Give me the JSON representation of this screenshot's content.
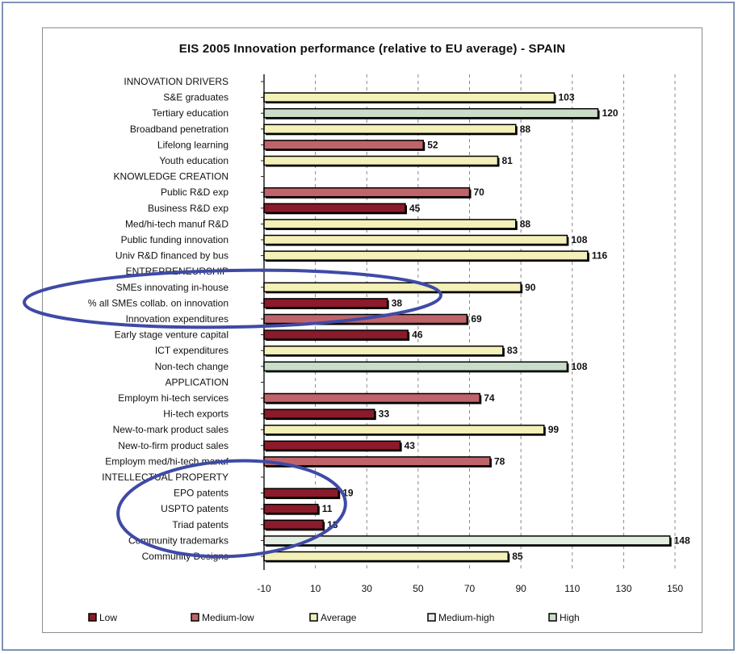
{
  "chart_data": {
    "type": "bar",
    "orientation": "horizontal",
    "title": "EIS 2005 Innovation performance (relative to EU average) - SPAIN",
    "xlabel": "",
    "ylabel": "",
    "xlim": [
      -10,
      150
    ],
    "xticks": [
      -10,
      10,
      30,
      50,
      70,
      90,
      110,
      130,
      150
    ],
    "grid": "vertical dashed",
    "legend_position": "bottom",
    "legend": [
      {
        "key": "low",
        "label": "Low",
        "color": "#8b1a2b"
      },
      {
        "key": "medium-low",
        "label": "Medium-low",
        "color": "#c0646b"
      },
      {
        "key": "average",
        "label": "Average",
        "color": "#f3f0b8"
      },
      {
        "key": "medium-high",
        "label": "Medium-high",
        "color": "#e4eee0"
      },
      {
        "key": "high",
        "label": "High",
        "color": "#c9ddc9"
      }
    ],
    "categories": [
      {
        "label": "INNOVATION DRIVERS",
        "header": true
      },
      {
        "label": "S&E graduates",
        "value": 103,
        "level": "average"
      },
      {
        "label": "Tertiary education",
        "value": 120,
        "level": "high"
      },
      {
        "label": "Broadband penetration",
        "value": 88,
        "level": "average"
      },
      {
        "label": "Lifelong learning",
        "value": 52,
        "level": "medium-low"
      },
      {
        "label": "Youth education",
        "value": 81,
        "level": "average"
      },
      {
        "label": "KNOWLEDGE CREATION",
        "header": true
      },
      {
        "label": "Public R&D exp",
        "value": 70,
        "level": "medium-low"
      },
      {
        "label": "Business R&D exp",
        "value": 45,
        "level": "low"
      },
      {
        "label": "Med/hi-tech manuf R&D",
        "value": 88,
        "level": "average"
      },
      {
        "label": "Public funding innovation",
        "value": 108,
        "level": "average"
      },
      {
        "label": "Univ R&D financed by bus",
        "value": 116,
        "level": "average"
      },
      {
        "label": "ENTREPRENEURSHIP",
        "header": true
      },
      {
        "label": "SMEs innovating in-house",
        "value": 90,
        "level": "average"
      },
      {
        "label": "% all SMEs collab. on innovation",
        "value": 38,
        "level": "low"
      },
      {
        "label": "Innovation expenditures",
        "value": 69,
        "level": "medium-low"
      },
      {
        "label": "Early stage venture capital",
        "value": 46,
        "level": "low"
      },
      {
        "label": "ICT expenditures",
        "value": 83,
        "level": "average"
      },
      {
        "label": "Non-tech change",
        "value": 108,
        "level": "high"
      },
      {
        "label": "APPLICATION",
        "header": true
      },
      {
        "label": "Employm hi-tech services",
        "value": 74,
        "level": "medium-low"
      },
      {
        "label": "Hi-tech exports",
        "value": 33,
        "level": "low"
      },
      {
        "label": "New-to-mark product sales",
        "value": 99,
        "level": "average"
      },
      {
        "label": "New-to-firm product sales",
        "value": 43,
        "level": "low"
      },
      {
        "label": "Employm med/hi-tech manuf",
        "value": 78,
        "level": "medium-low"
      },
      {
        "label": "INTELLECTUAL PROPERTY",
        "header": true
      },
      {
        "label": "EPO patents",
        "value": 19,
        "level": "low"
      },
      {
        "label": "USPTO patents",
        "value": 11,
        "level": "low"
      },
      {
        "label": "Triad patents",
        "value": 13,
        "level": "low"
      },
      {
        "label": "Community trademarks",
        "value": 148,
        "level": "medium-high"
      },
      {
        "label": "Community Designs",
        "value": 85,
        "level": "average"
      }
    ],
    "annotation_color": "#3f4aa6"
  }
}
